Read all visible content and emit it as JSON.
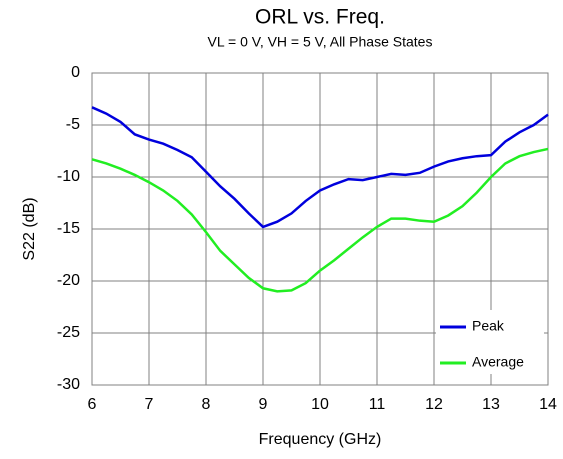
{
  "chart_data": {
    "type": "line",
    "title": "ORL vs. Freq.",
    "subtitle": "VL = 0 V, VH = 5 V, All Phase States",
    "x_label": "Frequency (GHz)",
    "y_label": "S22 (dB)",
    "x": [
      6,
      6.25,
      6.5,
      6.75,
      7,
      7.25,
      7.5,
      7.75,
      8,
      8.25,
      8.5,
      8.75,
      9,
      9.25,
      9.5,
      9.75,
      10,
      10.25,
      10.5,
      10.75,
      11,
      11.25,
      11.5,
      11.75,
      12,
      12.25,
      12.5,
      12.75,
      13,
      13.25,
      13.5,
      13.75,
      14
    ],
    "series": [
      {
        "name": "Peak",
        "color": "#0000dd",
        "values": [
          -3.3,
          -3.9,
          -4.7,
          -5.9,
          -6.4,
          -6.8,
          -7.4,
          -8.1,
          -9.5,
          -10.9,
          -12.1,
          -13.5,
          -14.8,
          -14.3,
          -13.5,
          -12.3,
          -11.3,
          -10.7,
          -10.2,
          -10.3,
          -10.0,
          -9.7,
          -9.8,
          -9.6,
          -9.0,
          -8.5,
          -8.2,
          -8.0,
          -7.9,
          -6.6,
          -5.7,
          -5.0,
          -4.0
        ]
      },
      {
        "name": "Average",
        "color": "#22ee22",
        "values": [
          -8.3,
          -8.7,
          -9.2,
          -9.8,
          -10.5,
          -11.3,
          -12.3,
          -13.6,
          -15.3,
          -17.1,
          -18.4,
          -19.7,
          -20.7,
          -21.0,
          -20.9,
          -20.2,
          -19.0,
          -18.0,
          -16.9,
          -15.8,
          -14.8,
          -14.0,
          -14.0,
          -14.2,
          -14.3,
          -13.7,
          -12.8,
          -11.5,
          -10.0,
          -8.7,
          -8.0,
          -7.6,
          -7.3
        ]
      }
    ],
    "xlim": [
      6,
      14
    ],
    "xticks": [
      6,
      7,
      8,
      9,
      10,
      11,
      12,
      13,
      14
    ],
    "ylim": [
      -30,
      0
    ],
    "yticks": [
      -30,
      -25,
      -20,
      -15,
      -10,
      -5,
      0
    ],
    "grid": true,
    "legend": "lower right"
  }
}
